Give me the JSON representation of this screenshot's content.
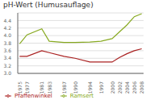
{
  "chart_data": {
    "type": "line",
    "title": "pH-Wert (Humusauflage)",
    "x": [
      1975,
      1977,
      1981,
      1983,
      1987,
      1990,
      1994,
      1997,
      2000,
      2002,
      2004,
      2006,
      2008
    ],
    "series": [
      {
        "name": "Pfaffenwinkel",
        "color": "#aa2222",
        "values": [
          3.45,
          3.45,
          3.6,
          3.55,
          3.45,
          3.4,
          3.3,
          3.3,
          3.3,
          3.42,
          3.52,
          3.6,
          3.65
        ]
      },
      {
        "name": "Ramsert",
        "color": "#88aa22",
        "values": [
          3.78,
          4.02,
          4.18,
          3.85,
          3.82,
          3.82,
          3.83,
          3.85,
          3.92,
          4.1,
          4.28,
          4.5,
          4.58
        ]
      }
    ],
    "xlim": [
      1974.5,
      2008.5
    ],
    "xticks": [
      1975,
      1977,
      1981,
      1983,
      1987,
      1990,
      1994,
      1997,
      2000,
      2002,
      2004,
      2006,
      2008
    ],
    "ylim": [
      3.0,
      4.6
    ],
    "yticks": [
      {
        "value": 3.0,
        "label": "3.0"
      },
      3.2,
      3.4,
      3.6,
      3.8,
      {
        "value": 4.0,
        "label": "4.0"
      },
      4.2,
      4.4
    ],
    "grid": true,
    "legend": "bottom"
  }
}
